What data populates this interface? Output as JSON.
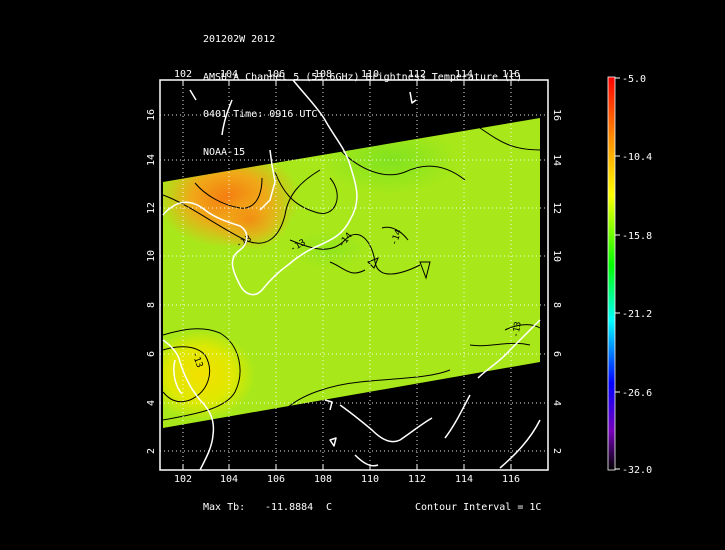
{
  "header": {
    "line1": "201202W 2012",
    "line2": "AMSU-A Channel 5 (53.6GHz) Brightness Temperature (C)",
    "line3": "0401 Time: 0916 UTC",
    "line4": "NOAA-15"
  },
  "axes": {
    "lon_labels": [
      "102",
      "104",
      "106",
      "108",
      "110",
      "112",
      "114",
      "116"
    ],
    "lat_labels": [
      "2",
      "4",
      "6",
      "8",
      "10",
      "12",
      "14",
      "16"
    ],
    "lon_range": [
      101.0,
      117.5
    ],
    "lat_range": [
      1.5,
      17.5
    ],
    "grid": true
  },
  "colorbar": {
    "labels": [
      "-5.0",
      "-10.4",
      "-15.8",
      "-21.2",
      "-26.6",
      "-32.0"
    ],
    "colors": [
      "#ff0000",
      "#ff8800",
      "#ffff00",
      "#00ff00",
      "#00ffff",
      "#0000ff",
      "#7700bb",
      "#000000"
    ]
  },
  "contours": {
    "labels": [
      "-13",
      "-13",
      "-14",
      "-13",
      "-14",
      "-13"
    ]
  },
  "footer": {
    "max_tb_label": "Max Tb:",
    "max_tb_value": "-11.8884",
    "max_tb_unit": "C",
    "contour_interval": "Contour Interval = 1C"
  },
  "colors": {
    "background": "#000000",
    "swath_main": "#a8e81a",
    "swath_warm": "#f08a14",
    "swath_yellow": "#e4e400",
    "coastline": "#ffffff",
    "contour": "#000000"
  }
}
